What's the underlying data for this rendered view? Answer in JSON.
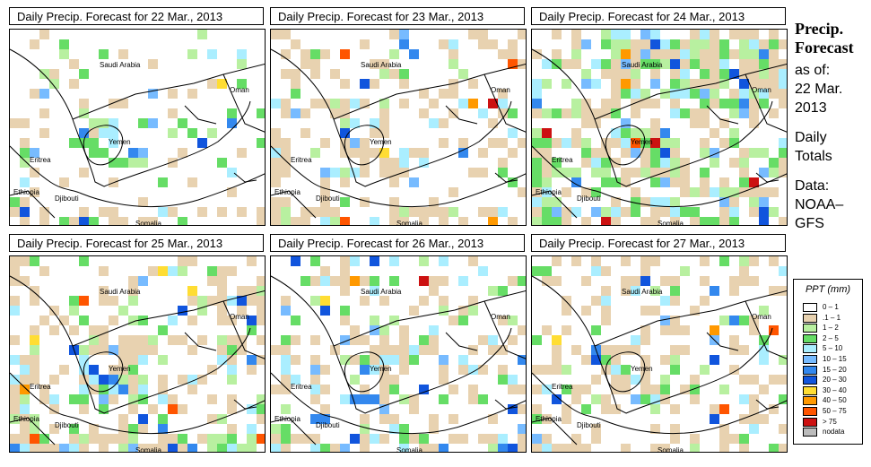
{
  "panels": [
    {
      "title": "Daily Precip. Forecast for  22 Mar., 2013",
      "density": 0.16,
      "wet": 0.55
    },
    {
      "title": "Daily Precip. Forecast for  23 Mar., 2013",
      "density": 0.3,
      "wet": 0.35
    },
    {
      "title": "Daily Precip. Forecast for  24 Mar., 2013",
      "density": 0.45,
      "wet": 0.55
    },
    {
      "title": "Daily Precip. Forecast for  25 Mar., 2013",
      "density": 0.4,
      "wet": 0.45
    },
    {
      "title": "Daily Precip. Forecast for  26 Mar., 2013",
      "density": 0.32,
      "wet": 0.4
    },
    {
      "title": "Daily Precip. Forecast for  27 Mar., 2013",
      "density": 0.3,
      "wet": 0.35
    }
  ],
  "map_labels": {
    "saudi_arabia": "Saudi Arabia",
    "oman": "Oman",
    "yemen": "Yemen",
    "eritrea": "Eritrea",
    "ethiopia": "Ethiopia",
    "djibouti": "Djibouti",
    "somalia": "Somalia"
  },
  "sidebar": {
    "heading1": "Precip.",
    "heading2": "Forecast",
    "asof": "as of:",
    "date1": "22 Mar.",
    "date2": "2013",
    "daily": "Daily",
    "totals": "Totals",
    "data_label": "Data:",
    "source1": "NOAA–",
    "source2": "GFS"
  },
  "legend": {
    "title": "PPT (mm)",
    "items": [
      {
        "label": "0 – 1",
        "color": "#ffffff"
      },
      {
        "label": ".1 – 1",
        "color": "#e8d2b0"
      },
      {
        "label": "1 – 2",
        "color": "#b8f0a0"
      },
      {
        "label": "2 – 5",
        "color": "#66dd66"
      },
      {
        "label": "5 – 10",
        "color": "#aaeeff"
      },
      {
        "label": "10 – 15",
        "color": "#77bbff"
      },
      {
        "label": "15 – 20",
        "color": "#3388ee"
      },
      {
        "label": "20 – 30",
        "color": "#1155dd"
      },
      {
        "label": "30 – 40",
        "color": "#ffdd33"
      },
      {
        "label": "40 – 50",
        "color": "#ff9900"
      },
      {
        "label": "50 – 75",
        "color": "#ff5500"
      },
      {
        "label": "> 75",
        "color": "#cc1111"
      },
      {
        "label": "nodata",
        "color": "#bbbbbb"
      }
    ]
  }
}
